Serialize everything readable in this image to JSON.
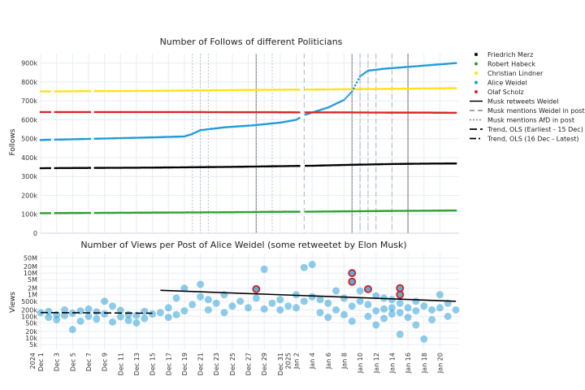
{
  "chart_data": [
    {
      "type": "scatter",
      "title": "Number of Follows of different Politicians",
      "ylabel": "Follows",
      "xlim": [
        "2024-12-01",
        "2025-01-22"
      ],
      "ylim": [
        0,
        950000
      ],
      "y_ticks": [
        0,
        100000,
        200000,
        300000,
        400000,
        500000,
        600000,
        700000,
        800000,
        900000
      ],
      "y_tick_labels": [
        "0",
        "100k",
        "200k",
        "300k",
        "400k",
        "500k",
        "600k",
        "700k",
        "800k",
        "900k"
      ],
      "grid": true,
      "legend_placement": "right",
      "series": [
        {
          "name": "Friedrich Merz",
          "color": "#000000",
          "x": [
            "2024-12-01",
            "2024-12-05",
            "2024-12-10",
            "2024-12-15",
            "2024-12-20",
            "2024-12-25",
            "2024-12-30",
            "2025-01-04",
            "2025-01-09",
            "2025-01-14",
            "2025-01-18",
            "2025-01-22"
          ],
          "values": [
            344000,
            345000,
            346000,
            347000,
            349000,
            351000,
            354000,
            357000,
            362000,
            366000,
            368000,
            369000
          ]
        },
        {
          "name": "Robert Habeck",
          "color": "#2ca02c",
          "x": [
            "2024-12-01",
            "2024-12-05",
            "2024-12-10",
            "2024-12-15",
            "2024-12-20",
            "2024-12-25",
            "2024-12-30",
            "2025-01-04",
            "2025-01-09",
            "2025-01-14",
            "2025-01-18",
            "2025-01-22"
          ],
          "values": [
            106000,
            107000,
            108000,
            109000,
            110000,
            111000,
            113000,
            114000,
            116000,
            118000,
            119000,
            120000
          ]
        },
        {
          "name": "Christian Lindner",
          "color": "#ffe11a",
          "x": [
            "2024-12-01",
            "2024-12-05",
            "2024-12-10",
            "2024-12-15",
            "2024-12-20",
            "2024-12-25",
            "2024-12-30",
            "2025-01-04",
            "2025-01-09",
            "2025-01-14",
            "2025-01-18",
            "2025-01-22"
          ],
          "values": [
            750000,
            751000,
            752000,
            753000,
            755000,
            757000,
            759000,
            760000,
            762000,
            764000,
            766000,
            767000
          ]
        },
        {
          "name": "Alice Weidel",
          "color": "#1f9ad6",
          "x": [
            "2024-12-01",
            "2024-12-05",
            "2024-12-10",
            "2024-12-15",
            "2024-12-19",
            "2024-12-20",
            "2024-12-21",
            "2024-12-24",
            "2024-12-28",
            "2024-12-31",
            "2025-01-02",
            "2025-01-03",
            "2025-01-06",
            "2025-01-08",
            "2025-01-09",
            "2025-01-10",
            "2025-01-11",
            "2025-01-13",
            "2025-01-16",
            "2025-01-19",
            "2025-01-22"
          ],
          "values": [
            493000,
            497000,
            502000,
            507000,
            512000,
            525000,
            545000,
            560000,
            572000,
            585000,
            600000,
            625000,
            665000,
            705000,
            750000,
            830000,
            860000,
            870000,
            880000,
            890000,
            900000
          ]
        },
        {
          "name": "Olaf Scholz",
          "color": "#d62728",
          "x": [
            "2024-12-01",
            "2024-12-05",
            "2024-12-10",
            "2024-12-15",
            "2024-12-20",
            "2024-12-25",
            "2024-12-30",
            "2025-01-04",
            "2025-01-09",
            "2025-01-14",
            "2025-01-18",
            "2025-01-22"
          ],
          "values": [
            641000,
            641000,
            641000,
            641000,
            641000,
            640000,
            640000,
            639000,
            639000,
            638000,
            638000,
            637000
          ]
        }
      ],
      "event_lines": [
        {
          "name": "Musk retweets Weidel",
          "style": "solid",
          "color": "#888888",
          "x": [
            "2024-12-28",
            "2025-01-09",
            "2025-01-16"
          ]
        },
        {
          "name": "Musk mentions Weidel in post",
          "style": "dash",
          "color": "#aab4c4",
          "x": [
            "2025-01-03",
            "2025-01-10",
            "2025-01-11",
            "2025-01-12",
            "2025-01-14"
          ]
        },
        {
          "name": "Musk mentions AfD in post",
          "style": "dot",
          "color": "#b8c2d2",
          "x": [
            "2024-12-20",
            "2024-12-21",
            "2024-12-22",
            "2024-12-28",
            "2024-12-30",
            "2025-01-09",
            "2025-01-10",
            "2025-01-11"
          ]
        }
      ],
      "trend_lines": [
        {
          "name": "Trend, OLS (Earliest - 15 Dec)",
          "style": "longdash"
        },
        {
          "name": "Trend, OLS (16 Dec - Latest)",
          "style": "dashdot"
        }
      ]
    },
    {
      "type": "scatter",
      "title": "Number of Views per Post of Alice Weidel (some retweetet by Elon Musk)",
      "ylabel": "Views",
      "y_scale": "log",
      "ylim": [
        3000,
        80000000
      ],
      "y_ticks": [
        5000,
        10000,
        20000,
        50000,
        100000,
        200000,
        500000,
        1000000,
        2000000,
        5000000,
        10000000,
        20000000,
        50000000
      ],
      "y_tick_labels": [
        "5k",
        "10k",
        "20k",
        "50k",
        "100k",
        "200k",
        "500k",
        "1M",
        "2M",
        "5M",
        "10M",
        "20M",
        "50M"
      ],
      "x_tick_labels": [
        "Dec 1\n2024",
        "Dec 3",
        "Dec 5",
        "Dec 7",
        "Dec 9",
        "Dec 11",
        "Dec 13",
        "Dec 15",
        "Dec 17",
        "Dec 19",
        "Dec 21",
        "Dec 23",
        "Dec 25",
        "Dec 27",
        "Dec 29",
        "Dec 31",
        "Jan 2\n2025",
        "Jan 4",
        "Jan 6",
        "Jan 8",
        "Jan 10",
        "Jan 12",
        "Jan 14",
        "Jan 16",
        "Jan 18",
        "Jan 20"
      ],
      "x_tick_dates": [
        "2024-12-01",
        "2024-12-03",
        "2024-12-05",
        "2024-12-07",
        "2024-12-09",
        "2024-12-11",
        "2024-12-13",
        "2024-12-15",
        "2024-12-17",
        "2024-12-19",
        "2024-12-21",
        "2024-12-23",
        "2024-12-25",
        "2024-12-27",
        "2024-12-29",
        "2024-12-31",
        "2025-01-02",
        "2025-01-04",
        "2025-01-06",
        "2025-01-08",
        "2025-01-10",
        "2025-01-12",
        "2025-01-14",
        "2025-01-16",
        "2025-01-18",
        "2025-01-20"
      ],
      "grid": true,
      "point_color": "#1f9ad6",
      "retweet_outline_color": "#d62728",
      "points": [
        {
          "x": "2024-12-01",
          "y": 150000
        },
        {
          "x": "2024-12-02",
          "y": 170000
        },
        {
          "x": "2024-12-02",
          "y": 90000
        },
        {
          "x": "2024-12-03",
          "y": 120000
        },
        {
          "x": "2024-12-03",
          "y": 70000
        },
        {
          "x": "2024-12-04",
          "y": 200000
        },
        {
          "x": "2024-12-04",
          "y": 110000
        },
        {
          "x": "2024-12-05",
          "y": 25000
        },
        {
          "x": "2024-12-05",
          "y": 140000
        },
        {
          "x": "2024-12-06",
          "y": 180000
        },
        {
          "x": "2024-12-06",
          "y": 60000
        },
        {
          "x": "2024-12-07",
          "y": 100000
        },
        {
          "x": "2024-12-07",
          "y": 220000
        },
        {
          "x": "2024-12-08",
          "y": 160000
        },
        {
          "x": "2024-12-08",
          "y": 75000
        },
        {
          "x": "2024-12-09",
          "y": 500000
        },
        {
          "x": "2024-12-09",
          "y": 130000
        },
        {
          "x": "2024-12-10",
          "y": 300000
        },
        {
          "x": "2024-12-10",
          "y": 55000
        },
        {
          "x": "2024-12-11",
          "y": 190000
        },
        {
          "x": "2024-12-11",
          "y": 95000
        },
        {
          "x": "2024-12-12",
          "y": 65000
        },
        {
          "x": "2024-12-12",
          "y": 120000
        },
        {
          "x": "2024-12-13",
          "y": 50000
        },
        {
          "x": "2024-12-13",
          "y": 110000
        },
        {
          "x": "2024-12-14",
          "y": 170000
        },
        {
          "x": "2024-12-14",
          "y": 80000
        },
        {
          "x": "2024-12-15",
          "y": 130000
        },
        {
          "x": "2024-12-16",
          "y": 150000
        },
        {
          "x": "2024-12-17",
          "y": 250000
        },
        {
          "x": "2024-12-17",
          "y": 90000
        },
        {
          "x": "2024-12-18",
          "y": 700000
        },
        {
          "x": "2024-12-18",
          "y": 120000
        },
        {
          "x": "2024-12-19",
          "y": 2000000
        },
        {
          "x": "2024-12-19",
          "y": 180000
        },
        {
          "x": "2024-12-20",
          "y": 350000
        },
        {
          "x": "2024-12-21",
          "y": 3000000
        },
        {
          "x": "2024-12-21",
          "y": 800000
        },
        {
          "x": "2024-12-22",
          "y": 600000
        },
        {
          "x": "2024-12-22",
          "y": 200000
        },
        {
          "x": "2024-12-23",
          "y": 400000
        },
        {
          "x": "2024-12-24",
          "y": 1000000
        },
        {
          "x": "2024-12-24",
          "y": 150000
        },
        {
          "x": "2024-12-25",
          "y": 300000
        },
        {
          "x": "2024-12-26",
          "y": 500000
        },
        {
          "x": "2024-12-27",
          "y": 250000
        },
        {
          "x": "2024-12-28",
          "y": 700000
        },
        {
          "x": "2024-12-29",
          "y": 15000000
        },
        {
          "x": "2024-12-29",
          "y": 220000
        },
        {
          "x": "2024-12-30",
          "y": 400000
        },
        {
          "x": "2024-12-31",
          "y": 600000
        },
        {
          "x": "2024-12-31",
          "y": 200000
        },
        {
          "x": "2025-01-01",
          "y": 300000
        },
        {
          "x": "2025-01-02",
          "y": 1000000
        },
        {
          "x": "2025-01-02",
          "y": 250000
        },
        {
          "x": "2025-01-03",
          "y": 18000000
        },
        {
          "x": "2025-01-03",
          "y": 500000
        },
        {
          "x": "2025-01-04",
          "y": 25000000
        },
        {
          "x": "2025-01-04",
          "y": 800000
        },
        {
          "x": "2025-01-05",
          "y": 600000
        },
        {
          "x": "2025-01-05",
          "y": 150000
        },
        {
          "x": "2025-01-06",
          "y": 400000
        },
        {
          "x": "2025-01-06",
          "y": 90000
        },
        {
          "x": "2025-01-07",
          "y": 1500000
        },
        {
          "x": "2025-01-07",
          "y": 200000
        },
        {
          "x": "2025-01-08",
          "y": 700000
        },
        {
          "x": "2025-01-08",
          "y": 120000
        },
        {
          "x": "2025-01-09",
          "y": 300000
        },
        {
          "x": "2025-01-09",
          "y": 60000
        },
        {
          "x": "2025-01-10",
          "y": 1500000
        },
        {
          "x": "2025-01-10",
          "y": 500000
        },
        {
          "x": "2025-01-11",
          "y": 350000
        },
        {
          "x": "2025-01-11",
          "y": 100000
        },
        {
          "x": "2025-01-12",
          "y": 900000
        },
        {
          "x": "2025-01-12",
          "y": 180000
        },
        {
          "x": "2025-01-12",
          "y": 40000
        },
        {
          "x": "2025-01-13",
          "y": 700000
        },
        {
          "x": "2025-01-13",
          "y": 220000
        },
        {
          "x": "2025-01-13",
          "y": 80000
        },
        {
          "x": "2025-01-14",
          "y": 600000
        },
        {
          "x": "2025-01-14",
          "y": 250000
        },
        {
          "x": "2025-01-14",
          "y": 130000
        },
        {
          "x": "2025-01-15",
          "y": 400000
        },
        {
          "x": "2025-01-15",
          "y": 150000
        },
        {
          "x": "2025-01-15",
          "y": 15000
        },
        {
          "x": "2025-01-16",
          "y": 250000
        },
        {
          "x": "2025-01-16",
          "y": 90000
        },
        {
          "x": "2025-01-17",
          "y": 500000
        },
        {
          "x": "2025-01-17",
          "y": 180000
        },
        {
          "x": "2025-01-17",
          "y": 40000
        },
        {
          "x": "2025-01-18",
          "y": 300000
        },
        {
          "x": "2025-01-18",
          "y": 9000
        },
        {
          "x": "2025-01-19",
          "y": 200000
        },
        {
          "x": "2025-01-19",
          "y": 70000
        },
        {
          "x": "2025-01-20",
          "y": 1000000
        },
        {
          "x": "2025-01-20",
          "y": 250000
        },
        {
          "x": "2025-01-21",
          "y": 400000
        },
        {
          "x": "2025-01-21",
          "y": 100000
        },
        {
          "x": "2025-01-22",
          "y": 200000
        }
      ],
      "retweeted_points": [
        {
          "x": "2024-12-28",
          "y": 1800000
        },
        {
          "x": "2025-01-09",
          "y": 10000000
        },
        {
          "x": "2025-01-09",
          "y": 4000000
        },
        {
          "x": "2025-01-11",
          "y": 1800000
        },
        {
          "x": "2025-01-15",
          "y": 2000000
        },
        {
          "x": "2025-01-15",
          "y": 1000000
        }
      ],
      "trend_segments": [
        {
          "style": "longdash",
          "x": [
            "2024-12-01",
            "2024-12-15"
          ],
          "values": [
            150000,
            140000
          ]
        },
        {
          "style": "solid",
          "x": [
            "2024-12-16",
            "2025-01-22"
          ],
          "values": [
            1600000,
            500000
          ]
        }
      ]
    }
  ]
}
